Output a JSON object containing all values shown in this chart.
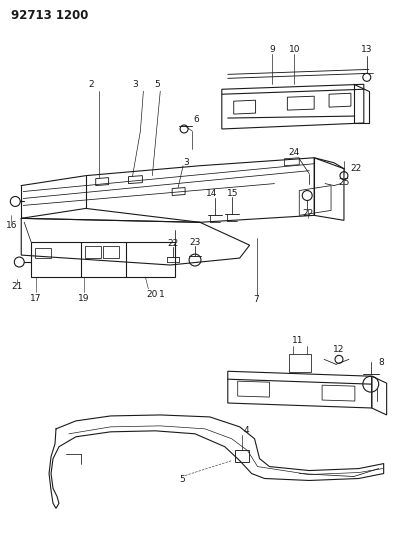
{
  "title": "92713 1200",
  "bg_color": "#ffffff",
  "line_color": "#1a1a1a",
  "lw": 0.8,
  "fig_w": 3.93,
  "fig_h": 5.33,
  "dpi": 100
}
